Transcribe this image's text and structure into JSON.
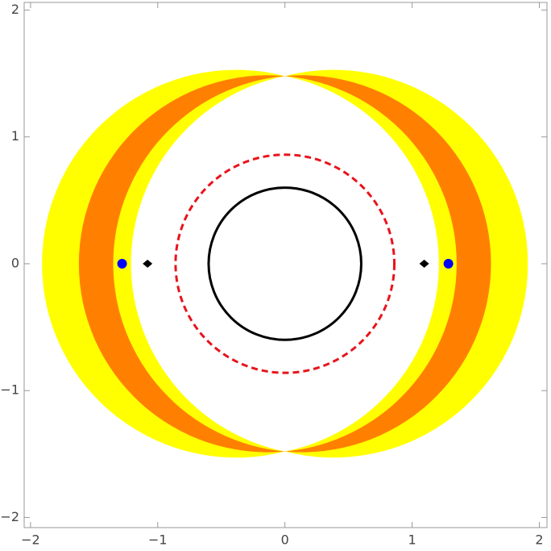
{
  "chart_data": {
    "type": "region",
    "xlim": [
      -2.05,
      2.06
    ],
    "ylim": [
      -2.08,
      2.06
    ],
    "xticks": [
      {
        "value": -2,
        "label": "−2"
      },
      {
        "value": -1,
        "label": "−1"
      },
      0,
      1,
      2
    ],
    "yticks": [
      {
        "value": -2,
        "label": "−2"
      },
      {
        "value": -1,
        "label": "−1"
      },
      0,
      1,
      2
    ],
    "cusp_y": 1.48,
    "bands": [
      {
        "color": "#ffff00",
        "inner": 1.21,
        "outer": 1.91
      },
      {
        "color": "#ff8000",
        "inner": 1.35,
        "outer": 1.62
      }
    ],
    "circles": [
      {
        "r": 0.86,
        "color": "#e8141c",
        "dashed": true
      },
      {
        "r": 0.6,
        "color": "#000000",
        "dashed": false
      }
    ],
    "points": [
      {
        "marker": "circle",
        "color": "#0000ff",
        "x": [
          -1.28,
          1.285
        ],
        "y": [
          0,
          0
        ]
      },
      {
        "marker": "diamond",
        "color": "#000000",
        "x": [
          -1.08,
          1.095
        ],
        "y": [
          0,
          0
        ]
      }
    ]
  }
}
